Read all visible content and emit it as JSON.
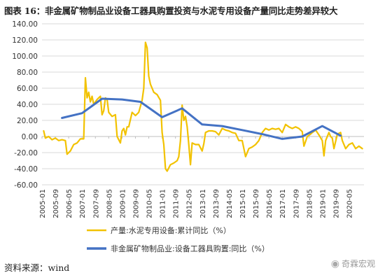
{
  "header": {
    "title": "图表 16：非金属矿物制品业设备工器具购置投资与水泥专用设备产量同比走势差异较大"
  },
  "footer": {
    "source": "资料来源：wind",
    "watermark": "奇霖宏观"
  },
  "colors": {
    "production": "#F2C200",
    "investment": "#4472C4",
    "grid": "#d9d9d9"
  },
  "icons": {
    "watermark": "wechat-icon"
  },
  "chart_data": {
    "type": "line",
    "title": "",
    "xlabel": "",
    "ylabel": "",
    "ylim": [
      -60,
      140
    ],
    "yticks": [
      "140.00",
      "120.00",
      "100.00",
      "80.00",
      "60.00",
      "40.00",
      "20.00",
      "0.00",
      "-20.00",
      "-40.00",
      "-60.00"
    ],
    "xlim": [
      "2005-01",
      "2021-02"
    ],
    "xticks": [
      "2005-01",
      "2005-09",
      "2006-05",
      "2007-01",
      "2007-09",
      "2008-05",
      "2009-01",
      "2009-09",
      "2010-05",
      "2011-01",
      "2011-09",
      "2012-05",
      "2013-01",
      "2013-09",
      "2014-05",
      "2015-01",
      "2015-09",
      "2016-05",
      "2017-01",
      "2017-09",
      "2018-05",
      "2019-01",
      "2019-09",
      "2020-05"
    ],
    "grid": "horizontal",
    "legend": "bottom",
    "series": [
      {
        "name": "产量:水泥专用设备:累计同比（%）",
        "color": "#F2C200",
        "points": [
          [
            "2005-02",
            7
          ],
          [
            "2005-03",
            -2
          ],
          [
            "2005-05",
            0
          ],
          [
            "2005-07",
            -4
          ],
          [
            "2005-09",
            -2
          ],
          [
            "2005-11",
            -5
          ],
          [
            "2006-01",
            -4
          ],
          [
            "2006-03",
            -5
          ],
          [
            "2006-04",
            -22
          ],
          [
            "2006-06",
            -18
          ],
          [
            "2006-08",
            -10
          ],
          [
            "2006-10",
            -8
          ],
          [
            "2006-12",
            -3
          ],
          [
            "2007-02",
            -3
          ],
          [
            "2007-03",
            73
          ],
          [
            "2007-04",
            48
          ],
          [
            "2007-05",
            55
          ],
          [
            "2007-06",
            43
          ],
          [
            "2007-07",
            50
          ],
          [
            "2007-08",
            40
          ],
          [
            "2007-09",
            43
          ],
          [
            "2007-10",
            46
          ],
          [
            "2007-11",
            48
          ],
          [
            "2007-12",
            50
          ],
          [
            "2008-01",
            27
          ],
          [
            "2008-02",
            32
          ],
          [
            "2008-03",
            48
          ],
          [
            "2008-04",
            46
          ],
          [
            "2008-05",
            30
          ],
          [
            "2008-07",
            25
          ],
          [
            "2008-09",
            27
          ],
          [
            "2008-10",
            0
          ],
          [
            "2008-12",
            -8
          ],
          [
            "2009-01",
            7
          ],
          [
            "2009-02",
            10
          ],
          [
            "2009-03",
            2
          ],
          [
            "2009-04",
            12
          ],
          [
            "2009-05",
            12
          ],
          [
            "2009-07",
            30
          ],
          [
            "2009-09",
            26
          ],
          [
            "2009-11",
            30
          ],
          [
            "2010-01",
            45
          ],
          [
            "2010-02",
            60
          ],
          [
            "2010-03",
            117
          ],
          [
            "2010-04",
            110
          ],
          [
            "2010-05",
            75
          ],
          [
            "2010-06",
            65
          ],
          [
            "2010-08",
            55
          ],
          [
            "2010-10",
            52
          ],
          [
            "2010-12",
            45
          ],
          [
            "2011-01",
            5
          ],
          [
            "2011-02",
            -10
          ],
          [
            "2011-03",
            -40
          ],
          [
            "2011-04",
            -43
          ],
          [
            "2011-06",
            -35
          ],
          [
            "2011-08",
            -33
          ],
          [
            "2011-10",
            -30
          ],
          [
            "2011-11",
            -25
          ],
          [
            "2011-12",
            -5
          ],
          [
            "2012-01",
            39
          ],
          [
            "2012-02",
            20
          ],
          [
            "2012-03",
            25
          ],
          [
            "2012-04",
            12
          ],
          [
            "2012-05",
            -10
          ],
          [
            "2012-06",
            -35
          ],
          [
            "2012-07",
            -8
          ],
          [
            "2012-09",
            -10
          ],
          [
            "2012-11",
            -10
          ],
          [
            "2013-01",
            -18
          ],
          [
            "2013-02",
            -9
          ],
          [
            "2013-03",
            5
          ],
          [
            "2013-05",
            7
          ],
          [
            "2013-07",
            7
          ],
          [
            "2013-09",
            6
          ],
          [
            "2013-11",
            2
          ],
          [
            "2014-01",
            10
          ],
          [
            "2014-03",
            8
          ],
          [
            "2014-05",
            7
          ],
          [
            "2014-07",
            5
          ],
          [
            "2014-09",
            4
          ],
          [
            "2014-11",
            -5
          ],
          [
            "2015-01",
            -5
          ],
          [
            "2015-03",
            -25
          ],
          [
            "2015-05",
            -15
          ],
          [
            "2015-07",
            -13
          ],
          [
            "2015-09",
            -10
          ],
          [
            "2015-11",
            -5
          ],
          [
            "2016-01",
            5
          ],
          [
            "2016-03",
            10
          ],
          [
            "2016-05",
            8
          ],
          [
            "2016-07",
            10
          ],
          [
            "2016-09",
            9
          ],
          [
            "2016-11",
            10
          ],
          [
            "2017-01",
            5
          ],
          [
            "2017-03",
            15
          ],
          [
            "2017-05",
            12
          ],
          [
            "2017-07",
            10
          ],
          [
            "2017-09",
            12
          ],
          [
            "2017-11",
            10
          ],
          [
            "2018-01",
            6
          ],
          [
            "2018-02",
            -12
          ],
          [
            "2018-04",
            0
          ],
          [
            "2018-06",
            3
          ],
          [
            "2018-07",
            5
          ],
          [
            "2018-09",
            8
          ],
          [
            "2018-11",
            2
          ],
          [
            "2019-01",
            -5
          ],
          [
            "2019-02",
            -24
          ],
          [
            "2019-03",
            -5
          ],
          [
            "2019-05",
            5
          ],
          [
            "2019-06",
            0
          ],
          [
            "2019-07",
            -2
          ],
          [
            "2019-08",
            -15
          ],
          [
            "2019-10",
            3
          ],
          [
            "2019-12",
            5
          ],
          [
            "2020-01",
            -5
          ],
          [
            "2020-03",
            -15
          ],
          [
            "2020-05",
            -10
          ],
          [
            "2020-07",
            -8
          ],
          [
            "2020-09",
            -15
          ],
          [
            "2020-11",
            -12
          ],
          [
            "2021-01",
            -15
          ]
        ]
      },
      {
        "name": "非金属矿物制品业:设备工器具购置:同比（%）",
        "color": "#4472C4",
        "points": [
          [
            "2006-01",
            23
          ],
          [
            "2007-01",
            29
          ],
          [
            "2008-01",
            47
          ],
          [
            "2009-01",
            46
          ],
          [
            "2009-12",
            43
          ],
          [
            "2011-01",
            24
          ],
          [
            "2012-01",
            35
          ],
          [
            "2013-01",
            15
          ],
          [
            "2014-01",
            13
          ],
          [
            "2015-01",
            8
          ],
          [
            "2016-01",
            3
          ],
          [
            "2017-01",
            -3
          ],
          [
            "2018-01",
            0
          ],
          [
            "2019-01",
            13
          ],
          [
            "2019-12",
            1
          ]
        ]
      }
    ]
  }
}
